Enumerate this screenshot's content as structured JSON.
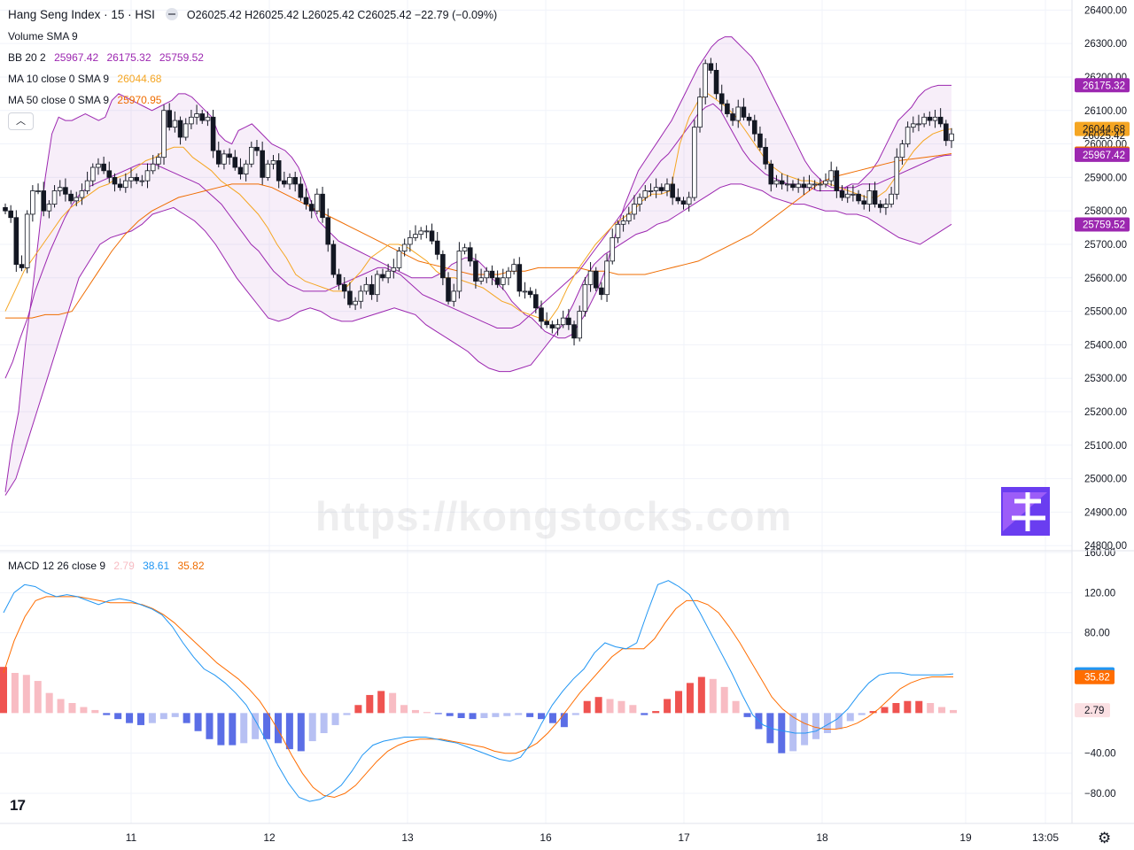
{
  "header": {
    "symbol_title": "Hang Seng Index · 15 · HSI",
    "ohlc": "O26025.42  H26025.42  L26025.42  C26025.42  −22.79 (−0.09%)"
  },
  "indicators": {
    "volume": {
      "label": "Volume",
      "params": "SMA 9"
    },
    "bb": {
      "label": "BB",
      "params": "20 2",
      "basis": "25967.42",
      "upper": "26175.32",
      "lower": "25759.52"
    },
    "ma10": {
      "label": "MA",
      "params": "10 close 0 SMA 9",
      "value": "26044.68"
    },
    "ma50": {
      "label": "MA",
      "params": "50 close 0 SMA 9",
      "value": "25970.95"
    },
    "macd": {
      "label": "MACD",
      "params": "12 26 close 9",
      "hist": "2.79",
      "macd": "38.61",
      "signal": "35.82"
    }
  },
  "controls": {
    "collapse_icon": "chevron-up-icon",
    "collapse_glyph": "︿",
    "settings_icon": "gear-icon",
    "settings_glyph": "⚙"
  },
  "watermark": "https://kongstocks.com",
  "tv_logo": "17",
  "colors": {
    "up_candle": "#ffffff",
    "down_candle": "#131722",
    "bb_line": "#9c27b0",
    "bb_fill": "rgba(156,39,176,0.08)",
    "ma10": "#f5a623",
    "ma50": "#ef6c00",
    "macd_line": "#2196f3",
    "signal_line": "#ff6d00",
    "hist_up_strong": "#ef5350",
    "hist_up_weak": "#f8bcc3",
    "hist_down_strong": "#5b6ee6",
    "hist_down_weak": "#b7c0f3",
    "price_label": "#131722"
  },
  "chart_data": [
    {
      "type": "candlestick",
      "title": "Hang Seng Index · 15 · HSI",
      "x_ticks": [
        "11",
        "12",
        "13",
        "16",
        "17",
        "18",
        "19",
        "13:05"
      ],
      "y_ticks": [
        24800,
        24900,
        25000,
        25100,
        25200,
        25300,
        25400,
        25500,
        25600,
        25700,
        25800,
        25900,
        26000,
        26100,
        26200,
        26300,
        26400
      ],
      "ylim": [
        24790,
        26430
      ],
      "grid": true,
      "price_labels": [
        {
          "value": "26175.32",
          "kind": "bb_upper"
        },
        {
          "value": "26044.68",
          "kind": "ma10"
        },
        {
          "value": "26025.42",
          "kind": "last"
        },
        {
          "value": "25970.95",
          "kind": "ma50"
        },
        {
          "value": "25967.42",
          "kind": "bb_basis"
        },
        {
          "value": "25759.52",
          "kind": "bb_lower"
        }
      ],
      "close": [
        25800,
        25780,
        25640,
        25630,
        25790,
        25860,
        25860,
        25800,
        25820,
        25860,
        25870,
        25850,
        25830,
        25840,
        25860,
        25890,
        25930,
        25940,
        25920,
        25900,
        25880,
        25870,
        25890,
        25900,
        25890,
        25890,
        25920,
        25940,
        25960,
        26100,
        26050,
        26070,
        26020,
        26060,
        26080,
        26090,
        26070,
        26080,
        25980,
        25940,
        25970,
        25960,
        25930,
        25910,
        25940,
        25990,
        25980,
        25900,
        25940,
        25950,
        25890,
        25880,
        25900,
        25880,
        25840,
        25820,
        25800,
        25850,
        25780,
        25700,
        25610,
        25580,
        25560,
        25520,
        25530,
        25560,
        25580,
        25550,
        25610,
        25600,
        25620,
        25630,
        25680,
        25700,
        25720,
        25730,
        25740,
        25740,
        25710,
        25670,
        25600,
        25530,
        25560,
        25680,
        25690,
        25650,
        25590,
        25600,
        25620,
        25600,
        25580,
        25600,
        25620,
        25640,
        25560,
        25560,
        25550,
        25510,
        25470,
        25460,
        25450,
        25460,
        25480,
        25460,
        25420,
        25500,
        25580,
        25620,
        25570,
        25550,
        25650,
        25720,
        25760,
        25770,
        25790,
        25820,
        25840,
        25860,
        25860,
        25870,
        25860,
        25880,
        25840,
        25830,
        25820,
        25840,
        26050,
        26140,
        26240,
        26220,
        26150,
        26120,
        26090,
        26070,
        26110,
        26080,
        26070,
        26030,
        25990,
        25940,
        25880,
        25890,
        25880,
        25880,
        25870,
        25880,
        25870,
        25880,
        25880,
        25880,
        25890,
        25920,
        25860,
        25840,
        25850,
        25850,
        25830,
        25820,
        25860,
        25820,
        25810,
        25820,
        25850,
        25960,
        26000,
        26050,
        26060,
        26060,
        26080,
        26070,
        26080,
        26060,
        26010,
        26030
      ],
      "bb_upper": [
        24960,
        25100,
        25200,
        25400,
        25550,
        25720,
        25900,
        26030,
        26080,
        26070,
        26070,
        26080,
        26090,
        26080,
        26070,
        26080,
        26130,
        26150,
        26140,
        26130,
        26120,
        26110,
        26100,
        26110,
        26120,
        26130,
        26150,
        26150,
        26140,
        26120,
        26100,
        26080,
        26030,
        26010,
        26000,
        26040,
        26050,
        26060,
        26040,
        26020,
        26000,
        25990,
        25980,
        25960,
        25930,
        25880,
        25820,
        25770,
        25750,
        25730,
        25710,
        25700,
        25690,
        25680,
        25670,
        25660,
        25650,
        25640,
        25630,
        25620,
        25610,
        25600,
        25600,
        25600,
        25600,
        25610,
        25620,
        25640,
        25650,
        25660,
        25660,
        25650,
        25630,
        25600,
        25580,
        25560,
        25530,
        25510,
        25490,
        25480,
        25460,
        25440,
        25430,
        25420,
        25420,
        25430,
        25460,
        25490,
        25530,
        25570,
        25620,
        25690,
        25760,
        25820,
        25870,
        25920,
        25950,
        25980,
        26010,
        26040,
        26070,
        26110,
        26150,
        26190,
        26230,
        26260,
        26290,
        26310,
        26320,
        26320,
        26300,
        26280,
        26260,
        26230,
        26190,
        26150,
        26110,
        26070,
        26030,
        25990,
        25950,
        25920,
        25900,
        25880,
        25870,
        25870,
        25870,
        25880,
        25880,
        25900,
        25920,
        25950,
        25990,
        26030,
        26070,
        26090,
        26110,
        26140,
        26160,
        26170,
        26175,
        26175,
        26175
      ],
      "bb_basis": [
        25300,
        25350,
        25420,
        25480,
        25560,
        25620,
        25680,
        25730,
        25780,
        25820,
        25850,
        25870,
        25880,
        25890,
        25900,
        25910,
        25920,
        25930,
        25940,
        25940,
        25940,
        25930,
        25920,
        25910,
        25900,
        25890,
        25880,
        25860,
        25840,
        25820,
        25790,
        25760,
        25730,
        25700,
        25680,
        25650,
        25620,
        25600,
        25580,
        25570,
        25560,
        25560,
        25560,
        25560,
        25570,
        25580,
        25590,
        25600,
        25610,
        25620,
        25630,
        25630,
        25620,
        25610,
        25590,
        25570,
        25550,
        25540,
        25530,
        25520,
        25510,
        25500,
        25490,
        25480,
        25470,
        25460,
        25450,
        25450,
        25450,
        25460,
        25480,
        25500,
        25520,
        25540,
        25560,
        25580,
        25600,
        25620,
        25650,
        25680,
        25710,
        25740,
        25770,
        25800,
        25830,
        25860,
        25890,
        25920,
        25950,
        25970,
        26000,
        26030,
        26060,
        26090,
        26110,
        26120,
        26100,
        26060,
        26020,
        25980,
        25950,
        25930,
        25910,
        25900,
        25890,
        25880,
        25880,
        25870,
        25870,
        25860,
        25860,
        25860,
        25860,
        25870,
        25870,
        25880,
        25880,
        25880,
        25890,
        25900,
        25910,
        25920,
        25930,
        25940,
        25950,
        25960,
        25965,
        25967
      ],
      "bb_lower": [
        24950,
        25000,
        25100,
        25200,
        25300,
        25400,
        25500,
        25600,
        25650,
        25700,
        25720,
        25730,
        25740,
        25760,
        25790,
        25800,
        25810,
        25790,
        25770,
        25740,
        25700,
        25650,
        25600,
        25560,
        25520,
        25480,
        25470,
        25480,
        25500,
        25510,
        25500,
        25480,
        25470,
        25470,
        25480,
        25490,
        25500,
        25510,
        25500,
        25490,
        25460,
        25440,
        25420,
        25400,
        25380,
        25350,
        25330,
        25320,
        25320,
        25330,
        25340,
        25380,
        25420,
        25460,
        25520,
        25590,
        25640,
        25670,
        25690,
        25710,
        25730,
        25740,
        25760,
        25770,
        25790,
        25810,
        25830,
        25850,
        25870,
        25880,
        25880,
        25870,
        25860,
        25840,
        25830,
        25820,
        25820,
        25810,
        25800,
        25800,
        25790,
        25790,
        25780,
        25760,
        25740,
        25720,
        25710,
        25700,
        25720,
        25740,
        25760
      ],
      "ma10": [
        25500,
        25560,
        25620,
        25660,
        25700,
        25740,
        25780,
        25810,
        25830,
        25850,
        25870,
        25880,
        25900,
        25910,
        25930,
        25950,
        25960,
        25980,
        25990,
        25990,
        25960,
        25940,
        25920,
        25890,
        25870,
        25850,
        25820,
        25790,
        25750,
        25700,
        25660,
        25610,
        25590,
        25580,
        25570,
        25560,
        25560,
        25590,
        25620,
        25660,
        25680,
        25700,
        25700,
        25690,
        25670,
        25650,
        25620,
        25600,
        25600,
        25590,
        25580,
        25570,
        25550,
        25530,
        25520,
        25500,
        25490,
        25480,
        25470,
        25510,
        25570,
        25620,
        25660,
        25700,
        25730,
        25760,
        25780,
        25800,
        25830,
        25850,
        25850,
        25860,
        26000,
        26080,
        26130,
        26150,
        26130,
        26110,
        26080,
        26040,
        26000,
        25960,
        25930,
        25910,
        25900,
        25890,
        25890,
        25880,
        25880,
        25870,
        25860,
        25850,
        25840,
        25840,
        25860,
        25900,
        25940,
        25980,
        26010,
        26030,
        26040,
        26045
      ],
      "ma50": [
        25480,
        25480,
        25480,
        25490,
        25490,
        25500,
        25560,
        25620,
        25680,
        25730,
        25770,
        25800,
        25820,
        25840,
        25850,
        25860,
        25870,
        25880,
        25880,
        25880,
        25870,
        25850,
        25830,
        25810,
        25790,
        25770,
        25750,
        25730,
        25710,
        25690,
        25670,
        25650,
        25640,
        25630,
        25620,
        25610,
        25610,
        25610,
        25620,
        25620,
        25630,
        25630,
        25630,
        25630,
        25620,
        25620,
        25610,
        25610,
        25610,
        25620,
        25630,
        25640,
        25650,
        25670,
        25690,
        25710,
        25730,
        25760,
        25790,
        25820,
        25850,
        25880,
        25900,
        25910,
        25920,
        25930,
        25940,
        25950,
        25955,
        25960,
        25965,
        25971
      ]
    },
    {
      "type": "bar",
      "title": "MACD 12 26 close 9",
      "y_ticks": [
        -80,
        -40,
        2.79,
        80,
        120,
        160
      ],
      "ylim": [
        -110,
        160
      ],
      "grid": true,
      "price_labels": [
        {
          "value": "38.61",
          "kind": "macd"
        },
        {
          "value": "35.82",
          "kind": "signal"
        },
        {
          "value": "2.79",
          "kind": "hist"
        }
      ],
      "macd": [
        100,
        120,
        128,
        126,
        120,
        116,
        118,
        116,
        112,
        108,
        112,
        114,
        112,
        108,
        104,
        98,
        86,
        70,
        56,
        44,
        38,
        30,
        20,
        8,
        -10,
        -30,
        -52,
        -70,
        -84,
        -88,
        -86,
        -80,
        -72,
        -58,
        -42,
        -32,
        -28,
        -26,
        -24,
        -24,
        -24,
        -26,
        -28,
        -30,
        -34,
        -38,
        -42,
        -46,
        -48,
        -44,
        -30,
        -10,
        8,
        22,
        34,
        44,
        60,
        70,
        66,
        64,
        70,
        100,
        128,
        132,
        126,
        118,
        100,
        80,
        60,
        40,
        18,
        -2,
        -12,
        -16,
        -18,
        -20,
        -20,
        -18,
        -12,
        -6,
        4,
        18,
        30,
        38,
        40,
        40,
        38,
        38,
        38,
        38,
        39
      ],
      "signal": [
        40,
        72,
        96,
        112,
        116,
        116,
        116,
        116,
        114,
        112,
        110,
        110,
        110,
        108,
        104,
        98,
        90,
        80,
        70,
        60,
        50,
        42,
        34,
        24,
        12,
        -4,
        -22,
        -42,
        -60,
        -74,
        -82,
        -84,
        -80,
        -72,
        -60,
        -48,
        -38,
        -32,
        -28,
        -26,
        -26,
        -26,
        -28,
        -30,
        -32,
        -34,
        -38,
        -40,
        -40,
        -36,
        -30,
        -20,
        -8,
        6,
        20,
        32,
        44,
        56,
        64,
        64,
        64,
        74,
        90,
        104,
        112,
        112,
        108,
        100,
        86,
        70,
        52,
        34,
        16,
        4,
        -4,
        -10,
        -14,
        -16,
        -16,
        -14,
        -10,
        -4,
        4,
        14,
        24,
        30,
        34,
        36,
        36,
        36
      ],
      "histogram": [
        46,
        40,
        38,
        32,
        20,
        14,
        10,
        6,
        3,
        -2,
        -6,
        -10,
        -12,
        -10,
        -6,
        -4,
        -10,
        -18,
        -26,
        -32,
        -32,
        -30,
        -26,
        -26,
        -30,
        -36,
        -38,
        -28,
        -20,
        -12,
        -2,
        8,
        18,
        22,
        20,
        8,
        3,
        1,
        -1,
        -3,
        -5,
        -6,
        -5,
        -4,
        -3,
        -2,
        -4,
        -6,
        -10,
        -14,
        -2,
        12,
        16,
        14,
        12,
        8,
        -2,
        2,
        14,
        22,
        30,
        36,
        34,
        26,
        12,
        -4,
        -16,
        -30,
        -40,
        -38,
        -32,
        -26,
        -20,
        -16,
        -8,
        -2,
        2,
        6,
        10,
        12,
        12,
        10,
        6,
        3
      ]
    }
  ]
}
